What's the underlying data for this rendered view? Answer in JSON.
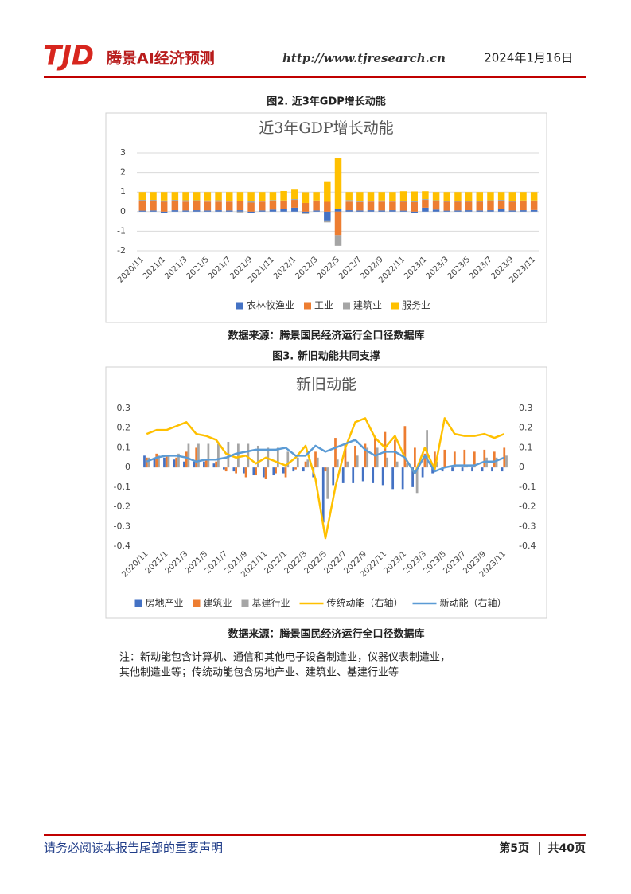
{
  "header": {
    "logo": "TJD",
    "brand": "腾景AI经济预测",
    "url": "http://www.tjresearch.cn",
    "date": "2024年1月16日"
  },
  "figures": [
    {
      "caption": "图2. 近3年GDP增长动能",
      "source": "数据来源：腾景国民经济运行全口径数据库"
    },
    {
      "caption": "图3. 新旧动能共同支撑",
      "source": "数据来源：腾景国民经济运行全口径数据库"
    }
  ],
  "note": [
    "注：新动能包含计算机、通信和其他电子设备制造业，仪器仪表制造业，",
    "其他制造业等；传统动能包含房地产业、建筑业、基建行业等"
  ],
  "footer": {
    "disclaimer": "请务必阅读本报告尾部的重要声明",
    "page": "第5页",
    "total": "共40页"
  },
  "chart_data": [
    {
      "type": "bar",
      "stacked": true,
      "title": "近3年GDP增长动能",
      "categories": [
        "2020/11",
        null,
        "2021/1",
        null,
        "2021/3",
        null,
        "2021/5",
        null,
        "2021/7",
        null,
        "2021/9",
        null,
        "2021/11",
        null,
        "2022/1",
        null,
        "2022/3",
        null,
        "2022/5",
        null,
        "2022/7",
        null,
        "2022/9",
        null,
        "2022/11",
        null,
        "2023/1",
        null,
        "2023/3",
        null,
        "2023/5",
        null,
        "2023/7",
        null,
        "2023/9",
        null,
        "2023/11"
      ],
      "series": [
        {
          "name": "农林牧渔业",
          "color": "#4472c4",
          "values": [
            0.05,
            0.06,
            -0.05,
            0.07,
            0.06,
            0.07,
            0.06,
            0.07,
            0.06,
            0.07,
            -0.06,
            0.06,
            0.1,
            0.12,
            0.2,
            -0.07,
            0.06,
            -0.45,
            0.15,
            0.07,
            0.06,
            0.07,
            0.06,
            0.07,
            0.05,
            -0.06,
            0.2,
            0.1,
            0.05,
            0.06,
            0.07,
            0.06,
            0.07,
            0.15,
            0.06,
            0.07,
            0.08
          ]
        },
        {
          "name": "工业",
          "color": "#ed7d31",
          "values": [
            0.5,
            0.48,
            0.5,
            0.47,
            0.45,
            0.46,
            0.45,
            0.44,
            0.45,
            0.46,
            0.46,
            0.45,
            0.45,
            0.42,
            0.4,
            0.44,
            0.46,
            0.5,
            -1.2,
            0.44,
            0.43,
            0.44,
            0.45,
            0.44,
            0.45,
            0.48,
            0.4,
            0.43,
            0.45,
            0.44,
            0.43,
            0.44,
            0.45,
            0.4,
            0.44,
            0.45,
            0.44
          ]
        },
        {
          "name": "建筑业",
          "color": "#a5a5a5",
          "values": [
            0.05,
            0.06,
            0.07,
            0.06,
            0.07,
            0.05,
            0.06,
            0.07,
            0.05,
            -0.04,
            0.06,
            0.05,
            0.04,
            0.03,
            0.04,
            -0.05,
            0.05,
            -0.1,
            -0.55,
            0.08,
            0.06,
            0.05,
            0.06,
            0.05,
            0.06,
            0.05,
            0.04,
            0.05,
            0.06,
            0.05,
            0.06,
            0.05,
            0.06,
            0.05,
            0.06,
            0.05,
            0.05
          ]
        },
        {
          "name": "服务业",
          "color": "#ffc000",
          "values": [
            0.4,
            0.4,
            0.43,
            0.4,
            0.42,
            0.42,
            0.43,
            0.42,
            0.44,
            0.47,
            0.48,
            0.44,
            0.41,
            0.48,
            0.48,
            0.55,
            0.43,
            1.05,
            2.6,
            0.41,
            0.45,
            0.44,
            0.43,
            0.44,
            0.48,
            0.5,
            0.4,
            0.42,
            0.44,
            0.45,
            0.44,
            0.45,
            0.42,
            0.4,
            0.44,
            0.43,
            0.43
          ]
        }
      ],
      "ylim": [
        -2,
        3
      ],
      "yticks": [
        -2,
        -1,
        0,
        1,
        2,
        3
      ],
      "grid": true,
      "legend": "bottom"
    },
    {
      "type": "combo",
      "title": "新旧动能",
      "categories": [
        "2020/11",
        null,
        "2021/1",
        null,
        "2021/3",
        null,
        "2021/5",
        null,
        "2021/7",
        null,
        "2021/9",
        null,
        "2021/11",
        null,
        "2022/1",
        null,
        "2022/3",
        null,
        "2022/5",
        null,
        "2022/7",
        null,
        "2022/9",
        null,
        "2022/11",
        null,
        "2023/1",
        null,
        "2023/3",
        null,
        "2023/5",
        null,
        "2023/7",
        null,
        "2023/9",
        null,
        "2023/11"
      ],
      "series": [
        {
          "name": "房地产业",
          "type": "bar",
          "color": "#4472c4",
          "values": [
            0.06,
            0.05,
            0.05,
            0.04,
            0.03,
            0.03,
            0.03,
            0.02,
            -0.01,
            -0.02,
            -0.03,
            -0.04,
            -0.05,
            -0.04,
            -0.03,
            -0.02,
            -0.02,
            -0.05,
            -0.28,
            -0.09,
            -0.08,
            -0.08,
            -0.07,
            -0.08,
            -0.09,
            -0.11,
            -0.11,
            -0.1,
            -0.05,
            -0.03,
            -0.02,
            -0.02,
            -0.02,
            -0.02,
            -0.02,
            -0.02,
            -0.02
          ]
        },
        {
          "name": "建筑业",
          "type": "bar",
          "color": "#ed7d31",
          "values": [
            0.05,
            0.07,
            0.06,
            0.05,
            0.08,
            0.1,
            0.04,
            0.03,
            -0.02,
            -0.03,
            -0.05,
            -0.04,
            -0.06,
            -0.03,
            -0.05,
            -0.01,
            0.03,
            0.08,
            -0.02,
            0.15,
            0.12,
            0.11,
            0.12,
            0.16,
            0.18,
            0.14,
            0.21,
            0.1,
            0.07,
            0.08,
            0.09,
            0.08,
            0.09,
            0.08,
            0.09,
            0.08,
            0.1
          ]
        },
        {
          "name": "基建行业",
          "type": "bar",
          "color": "#a5a5a5",
          "values": [
            0.05,
            0.06,
            0.06,
            0.07,
            0.12,
            0.12,
            0.12,
            0.12,
            0.13,
            0.12,
            0.12,
            0.11,
            0.1,
            0.1,
            0.08,
            0.05,
            0.04,
            0.05,
            -0.16,
            0.04,
            0.03,
            0.06,
            0.1,
            0.1,
            0.05,
            0.03,
            0.02,
            -0.13,
            0.19,
            0.03,
            0,
            0,
            0.01,
            0,
            0.05,
            0.05,
            0.06
          ]
        },
        {
          "name": "传统动能（右轴）",
          "type": "line",
          "axis": "y2",
          "color": "#ffc000",
          "values": [
            0.17,
            0.19,
            0.19,
            0.21,
            0.23,
            0.17,
            0.16,
            0.14,
            0.07,
            0.05,
            0.06,
            0.02,
            0.05,
            0.03,
            0.01,
            0.05,
            0.11,
            -0.06,
            -0.36,
            -0.1,
            0.1,
            0.23,
            0.25,
            0.15,
            0.1,
            0.16,
            0.05,
            -0.03,
            0.1,
            -0.01,
            0.25,
            0.17,
            0.16,
            0.16,
            0.17,
            0.15,
            0.17
          ]
        },
        {
          "name": "新动能（右轴）",
          "type": "line",
          "axis": "y2",
          "color": "#5b9bd5",
          "values": [
            0.03,
            0.05,
            0.06,
            0.06,
            0.05,
            0.03,
            0.04,
            0.04,
            0.05,
            0.07,
            0.08,
            0.09,
            0.09,
            0.09,
            0.1,
            0.06,
            0.06,
            0.11,
            0.08,
            0.1,
            0.12,
            0.14,
            0.09,
            0.06,
            0.08,
            0.08,
            0.05,
            -0.03,
            0.06,
            -0.02,
            0,
            0.01,
            0.01,
            0.01,
            0.03,
            0.03,
            0.05
          ]
        }
      ],
      "ylim": [
        -0.4,
        0.3
      ],
      "yticks": [
        -0.4,
        -0.3,
        -0.2,
        -0.1,
        0,
        0.1,
        0.2,
        0.3
      ],
      "y2lim": [
        -0.4,
        0.3
      ],
      "y2ticks": [
        -0.4,
        -0.3,
        -0.2,
        -0.1,
        0,
        0.1,
        0.2,
        0.3
      ],
      "grid": false,
      "legend": "bottom"
    }
  ]
}
